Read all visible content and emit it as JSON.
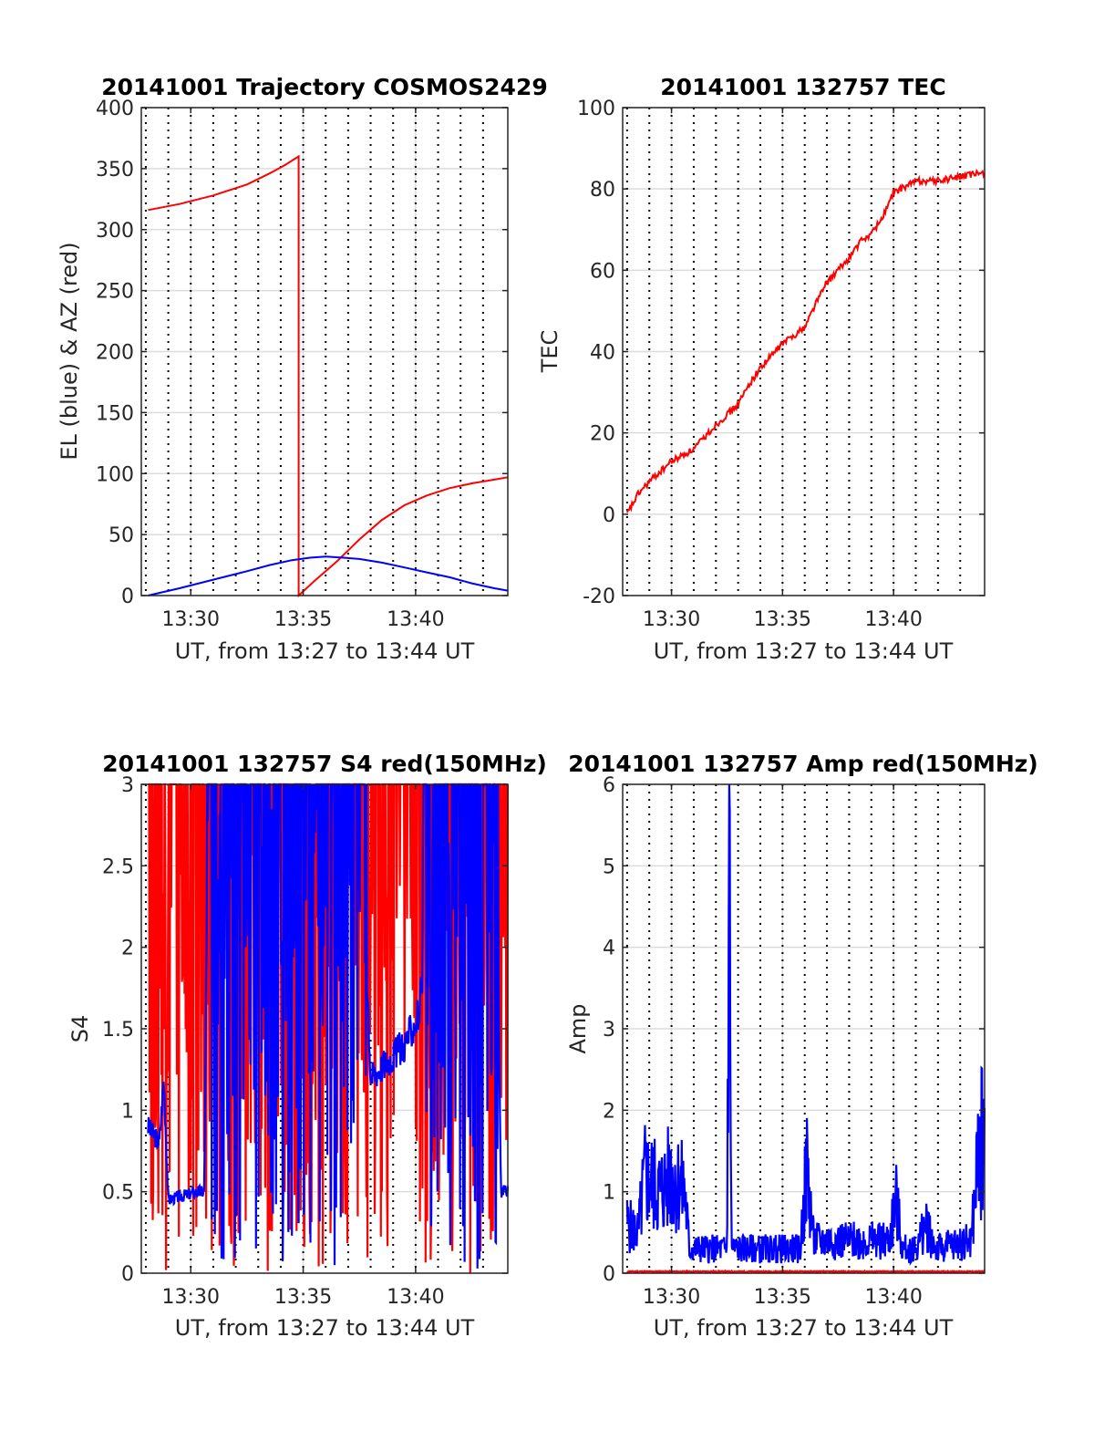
{
  "chart_data": [
    {
      "type": "line",
      "title": "20141001 Trajectory COSMOS2429",
      "xlabel": "UT, from 13:27 to 13:44 UT",
      "ylabel": "EL (blue) & AZ (red)",
      "xlim_minutes": [
        27.8,
        44.1
      ],
      "ylim": [
        0,
        400
      ],
      "xticks": [
        {
          "v": 30,
          "label": "13:30"
        },
        {
          "v": 35,
          "label": "13:35"
        },
        {
          "v": 40,
          "label": "13:40"
        }
      ],
      "yticks": [
        {
          "v": 0,
          "label": "0"
        },
        {
          "v": 50,
          "label": "50"
        },
        {
          "v": 100,
          "label": "100"
        },
        {
          "v": 150,
          "label": "150"
        },
        {
          "v": 200,
          "label": "200"
        },
        {
          "v": 250,
          "label": "250"
        },
        {
          "v": 300,
          "label": "300"
        },
        {
          "v": 350,
          "label": "350"
        },
        {
          "v": 400,
          "label": "400"
        }
      ],
      "grid": true,
      "series": [
        {
          "color": "#ff0000",
          "style": "line",
          "points": [
            [
              28.1,
              316
            ],
            [
              29.5,
              321
            ],
            [
              31,
              328
            ],
            [
              32.5,
              337
            ],
            [
              33.5,
              346
            ],
            [
              34.2,
              353
            ],
            [
              34.8,
              360
            ],
            [
              34.8,
              0
            ],
            [
              35.5,
              12
            ],
            [
              36.5,
              28
            ],
            [
              37.5,
              46
            ],
            [
              38.5,
              62
            ],
            [
              39.5,
              74
            ],
            [
              40.5,
              82
            ],
            [
              41.5,
              88
            ],
            [
              42.5,
              92
            ],
            [
              43.5,
              95
            ],
            [
              44.1,
              97
            ]
          ]
        },
        {
          "color": "#0000ff",
          "style": "line",
          "points": [
            [
              28.1,
              0
            ],
            [
              29.5,
              6
            ],
            [
              31,
              13
            ],
            [
              32.5,
              20
            ],
            [
              33.5,
              25
            ],
            [
              34.5,
              29
            ],
            [
              35.3,
              31
            ],
            [
              36,
              32
            ],
            [
              36.8,
              31
            ],
            [
              37.5,
              30
            ],
            [
              38.5,
              27
            ],
            [
              39.5,
              23
            ],
            [
              40.5,
              19
            ],
            [
              41.5,
              15
            ],
            [
              42.5,
              10
            ],
            [
              43.5,
              6
            ],
            [
              44.1,
              4
            ]
          ]
        }
      ]
    },
    {
      "type": "line",
      "title": "20141001 132757 TEC",
      "xlabel": "UT, from 13:27 to 13:44 UT",
      "ylabel": "TEC",
      "xlim_minutes": [
        27.8,
        44.1
      ],
      "ylim": [
        -20,
        100
      ],
      "xticks": [
        {
          "v": 30,
          "label": "13:30"
        },
        {
          "v": 35,
          "label": "13:35"
        },
        {
          "v": 40,
          "label": "13:40"
        }
      ],
      "yticks": [
        {
          "v": -20,
          "label": "-20"
        },
        {
          "v": 0,
          "label": "0"
        },
        {
          "v": 20,
          "label": "20"
        },
        {
          "v": 40,
          "label": "40"
        },
        {
          "v": 60,
          "label": "60"
        },
        {
          "v": 80,
          "label": "80"
        },
        {
          "v": 100,
          "label": "100"
        }
      ],
      "grid": true,
      "series": [
        {
          "color": "#ff0000",
          "style": "line",
          "noise": 0.8,
          "points": [
            [
              28.0,
              0
            ],
            [
              28.5,
              5
            ],
            [
              29,
              8
            ],
            [
              30,
              13
            ],
            [
              31,
              16
            ],
            [
              32,
              22
            ],
            [
              33,
              27
            ],
            [
              33.5,
              32
            ],
            [
              34,
              36
            ],
            [
              35,
              42
            ],
            [
              36,
              46
            ],
            [
              36.5,
              52
            ],
            [
              37,
              57
            ],
            [
              38,
              63
            ],
            [
              38.5,
              67
            ],
            [
              39,
              69
            ],
            [
              39.5,
              73
            ],
            [
              40,
              79
            ],
            [
              41,
              82
            ],
            [
              42,
              82
            ],
            [
              43,
              83
            ],
            [
              44.1,
              84
            ]
          ]
        }
      ]
    },
    {
      "type": "line",
      "title": "20141001 132757 S4 red(150MHz)",
      "xlabel": "UT, from 13:27 to 13:44 UT",
      "ylabel": "S4",
      "xlim_minutes": [
        27.8,
        44.1
      ],
      "ylim": [
        0,
        3
      ],
      "xticks": [
        {
          "v": 30,
          "label": "13:30"
        },
        {
          "v": 35,
          "label": "13:35"
        },
        {
          "v": 40,
          "label": "13:40"
        }
      ],
      "yticks": [
        {
          "v": 0,
          "label": "0"
        },
        {
          "v": 0.5,
          "label": "0.5"
        },
        {
          "v": 1,
          "label": "1"
        },
        {
          "v": 1.5,
          "label": "1.5"
        },
        {
          "v": 2,
          "label": "2"
        },
        {
          "v": 2.5,
          "label": "2.5"
        },
        {
          "v": 3,
          "label": "3"
        }
      ],
      "grid": true,
      "series": [
        {
          "color": "#ff0000",
          "style": "spiky",
          "seed": 7,
          "baseline": 2.5,
          "jitter": 0.8,
          "points": [
            [
              28.1,
              0.5
            ],
            [
              44.1,
              0.5
            ]
          ]
        },
        {
          "color": "#0000ff",
          "style": "spiky",
          "seed": 3,
          "jitter": 0.08,
          "points": [
            [
              28.1,
              0.9
            ],
            [
              28.6,
              0.8
            ],
            [
              28.8,
              1.2
            ],
            [
              29.0,
              0.45
            ],
            [
              30.3,
              0.5
            ],
            [
              30.6,
              0.5
            ],
            [
              30.7,
              2.0
            ],
            [
              37.8,
              2.0
            ],
            [
              38.0,
              1.2
            ],
            [
              39.5,
              1.4
            ],
            [
              40.2,
              1.6
            ],
            [
              40.6,
              2.6
            ],
            [
              43.6,
              2.6
            ],
            [
              43.8,
              0.5
            ],
            [
              44.1,
              0.5
            ]
          ]
        }
      ]
    },
    {
      "type": "line",
      "title": "20141001 132757 Amp red(150MHz)",
      "xlabel": "UT, from 13:27 to 13:44 UT",
      "ylabel": "Amp",
      "xlim_minutes": [
        27.8,
        44.1
      ],
      "ylim": [
        0,
        6
      ],
      "xticks": [
        {
          "v": 30,
          "label": "13:30"
        },
        {
          "v": 35,
          "label": "13:35"
        },
        {
          "v": 40,
          "label": "13:40"
        }
      ],
      "yticks": [
        {
          "v": 0,
          "label": "0"
        },
        {
          "v": 1,
          "label": "1"
        },
        {
          "v": 2,
          "label": "2"
        },
        {
          "v": 3,
          "label": "3"
        },
        {
          "v": 4,
          "label": "4"
        },
        {
          "v": 5,
          "label": "5"
        },
        {
          "v": 6,
          "label": "6"
        }
      ],
      "grid": true,
      "series": [
        {
          "color": "#ff0000",
          "style": "spiky",
          "seed": 11,
          "jitter": 0.02,
          "points": [
            [
              28.0,
              0.02
            ],
            [
              44.1,
              0.02
            ]
          ]
        },
        {
          "color": "#0000ff",
          "style": "spiky",
          "seed": 5,
          "jitter": 0.6,
          "points": [
            [
              28.0,
              0.6
            ],
            [
              28.5,
              0.5
            ],
            [
              28.8,
              1.2
            ],
            [
              29.5,
              1.0
            ],
            [
              30.0,
              1.2
            ],
            [
              30.6,
              1.0
            ],
            [
              30.8,
              0.3
            ],
            [
              32.5,
              0.3
            ],
            [
              32.6,
              5.9
            ],
            [
              32.7,
              0.3
            ],
            [
              35.8,
              0.3
            ],
            [
              36.1,
              1.3
            ],
            [
              36.4,
              0.4
            ],
            [
              39.8,
              0.4
            ],
            [
              40.1,
              0.9
            ],
            [
              40.4,
              0.3
            ],
            [
              41.0,
              0.3
            ],
            [
              41.5,
              0.6
            ],
            [
              41.9,
              0.3
            ],
            [
              43.5,
              0.4
            ],
            [
              43.8,
              1.4
            ],
            [
              44.1,
              1.8
            ]
          ]
        }
      ]
    }
  ]
}
